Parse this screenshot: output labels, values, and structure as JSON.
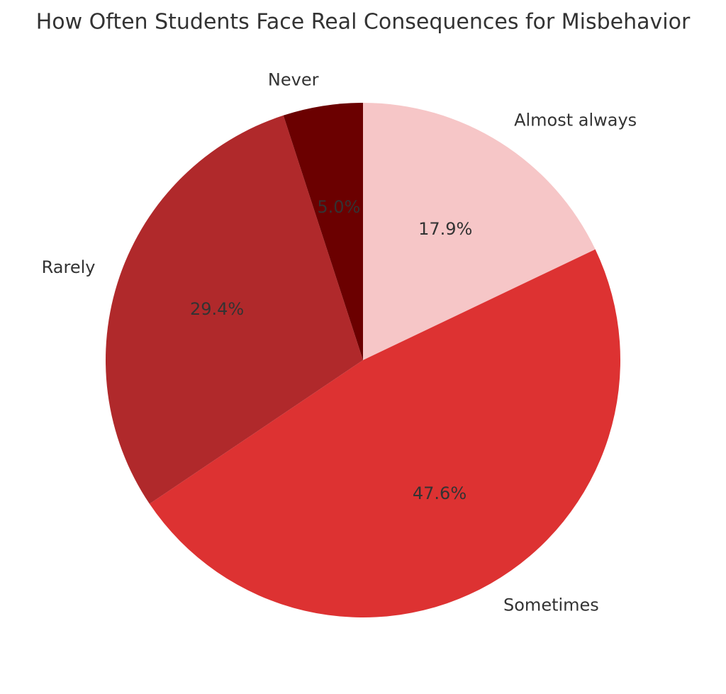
{
  "chart_data": {
    "type": "pie",
    "title": "How Often Students Face Real Consequences for Misbehavior",
    "categories": [
      "Almost always",
      "Sometimes",
      "Rarely",
      "Never"
    ],
    "values": [
      17.9,
      47.6,
      29.4,
      5.0
    ],
    "value_labels": [
      "17.9%",
      "47.6%",
      "29.4%",
      "5.0%"
    ],
    "colors": [
      "#f6c6c7",
      "#dd3232",
      "#b0292b",
      "#6b0000"
    ]
  }
}
